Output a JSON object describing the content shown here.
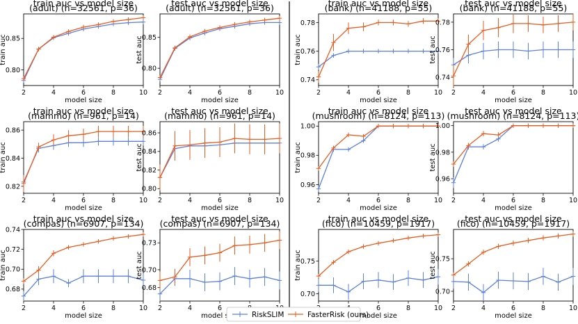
{
  "colors": {
    "riskslim": "#5b7fe0",
    "fasterrisk": "#ea5a1c",
    "divider": "#000000"
  },
  "legend": [
    {
      "name": "RiskSLIM",
      "color": "#5b7fe0"
    },
    {
      "name": "FasterRisk (ours)",
      "color": "#ea5a1c"
    }
  ],
  "chart_data": [
    {
      "type": "line",
      "title": "train auc vs model size",
      "subtitle": "(adult) (n=32561, p=36)",
      "xlabel": "model size",
      "ylabel": "train auc",
      "x": [
        2,
        3,
        4,
        5,
        6,
        7,
        8,
        9,
        10
      ],
      "xlim": [
        2,
        10
      ],
      "ylim": [
        0.775,
        0.889
      ],
      "xticks": [
        2,
        4,
        6,
        8,
        10
      ],
      "yticks": [
        0.8,
        0.85
      ],
      "ytick_labels": [
        "0.80",
        "0.85"
      ],
      "series": [
        {
          "name": "RiskSLIM",
          "values": [
            0.783,
            0.833,
            0.851,
            0.858,
            0.865,
            0.869,
            0.873,
            0.875,
            0.876
          ],
          "err": [
            0,
            0,
            0,
            0,
            0,
            0,
            0,
            0,
            0
          ]
        },
        {
          "name": "FasterRisk (ours)",
          "values": [
            0.786,
            0.833,
            0.852,
            0.861,
            0.868,
            0.872,
            0.877,
            0.88,
            0.883
          ],
          "err": [
            0,
            0,
            0,
            0,
            0,
            0,
            0,
            0,
            0
          ]
        }
      ]
    },
    {
      "type": "line",
      "title": "test auc vs model size",
      "subtitle": "(adult) (n=32561, p=36)",
      "xlabel": "model size",
      "ylabel": "test auc",
      "x": [
        2,
        3,
        4,
        5,
        6,
        7,
        8,
        9,
        10
      ],
      "xlim": [
        2,
        10
      ],
      "ylim": [
        0.772,
        0.888
      ],
      "xticks": [
        2,
        4,
        6,
        8,
        10
      ],
      "yticks": [
        0.8,
        0.85
      ],
      "ytick_labels": [
        "0.80",
        "0.85"
      ],
      "series": [
        {
          "name": "RiskSLIM",
          "values": [
            0.782,
            0.832,
            0.849,
            0.857,
            0.864,
            0.868,
            0.872,
            0.874,
            0.874
          ],
          "err": [
            0.003,
            0.003,
            0.003,
            0.003,
            0.003,
            0.003,
            0.003,
            0.003,
            0.003
          ]
        },
        {
          "name": "FasterRisk (ours)",
          "values": [
            0.785,
            0.833,
            0.851,
            0.86,
            0.866,
            0.871,
            0.875,
            0.878,
            0.881
          ],
          "err": [
            0.003,
            0.003,
            0.003,
            0.003,
            0.003,
            0.003,
            0.003,
            0.003,
            0.003
          ]
        }
      ]
    },
    {
      "type": "line",
      "title": "train auc vs model size",
      "subtitle": "(bank) (n=41188, p=55)",
      "xlabel": "model size",
      "ylabel": "train auc",
      "x": [
        2,
        3,
        4,
        5,
        6,
        7,
        8,
        9,
        10
      ],
      "xlim": [
        2,
        10
      ],
      "ylim": [
        0.736,
        0.786
      ],
      "xticks": [
        2,
        4,
        6,
        8,
        10
      ],
      "yticks": [
        0.74,
        0.76,
        0.78
      ],
      "ytick_labels": [
        "0.74",
        "0.76",
        "0.78"
      ],
      "series": [
        {
          "name": "RiskSLIM",
          "values": [
            0.749,
            0.757,
            0.76,
            0.76,
            0.76,
            0.76,
            0.76,
            0.76,
            0.76
          ],
          "err": [
            0.002,
            0.001,
            0.001,
            0.001,
            0.001,
            0.001,
            0.001,
            0.001,
            0.001
          ]
        },
        {
          "name": "FasterRisk (ours)",
          "values": [
            0.742,
            0.766,
            0.776,
            0.777,
            0.78,
            0.78,
            0.779,
            0.781,
            0.781
          ],
          "err": [
            0.004,
            0.006,
            0.004,
            0.003,
            0.002,
            0.002,
            0.002,
            0.002,
            0.002
          ]
        }
      ]
    },
    {
      "type": "line",
      "title": "test auc vs model size",
      "subtitle": "(bank) (n=41188, p=55)",
      "xlabel": "model size",
      "ylabel": "test auc",
      "x": [
        2,
        3,
        4,
        5,
        6,
        7,
        8,
        9,
        10
      ],
      "xlim": [
        2,
        10
      ],
      "ylim": [
        0.734,
        0.786
      ],
      "xticks": [
        2,
        4,
        6,
        8,
        10
      ],
      "yticks": [
        0.74,
        0.76,
        0.78
      ],
      "ytick_labels": [
        "0.74",
        "0.76",
        "0.78"
      ],
      "series": [
        {
          "name": "RiskSLIM",
          "values": [
            0.749,
            0.756,
            0.759,
            0.76,
            0.76,
            0.759,
            0.76,
            0.76,
            0.76
          ],
          "err": [
            0.005,
            0.006,
            0.006,
            0.006,
            0.006,
            0.006,
            0.006,
            0.006,
            0.006
          ]
        },
        {
          "name": "FasterRisk (ours)",
          "values": [
            0.741,
            0.764,
            0.774,
            0.776,
            0.779,
            0.779,
            0.778,
            0.779,
            0.78
          ],
          "err": [
            0.008,
            0.007,
            0.007,
            0.007,
            0.007,
            0.006,
            0.006,
            0.006,
            0.006
          ]
        }
      ]
    },
    {
      "type": "line",
      "title": "train auc vs model size",
      "subtitle": "(mammo) (n=961, p=14)",
      "xlabel": "model size",
      "ylabel": "train auc",
      "x": [
        2,
        3,
        4,
        5,
        6,
        7,
        8,
        9,
        10
      ],
      "xlim": [
        2,
        10
      ],
      "ylim": [
        0.815,
        0.866
      ],
      "xticks": [
        2,
        4,
        6,
        8,
        10
      ],
      "yticks": [
        0.82,
        0.84,
        0.86
      ],
      "ytick_labels": [
        "0.82",
        "0.84",
        "0.86"
      ],
      "series": [
        {
          "name": "RiskSLIM",
          "values": [
            0.823,
            0.847,
            0.849,
            0.851,
            0.851,
            0.852,
            0.852,
            0.852,
            0.852
          ],
          "err": [
            0.004,
            0.003,
            0.003,
            0.003,
            0.003,
            0.003,
            0.003,
            0.003,
            0.003
          ]
        },
        {
          "name": "FasterRisk (ours)",
          "values": [
            0.822,
            0.848,
            0.853,
            0.856,
            0.857,
            0.859,
            0.859,
            0.859,
            0.859
          ],
          "err": [
            0.006,
            0.003,
            0.004,
            0.004,
            0.004,
            0.004,
            0.004,
            0.004,
            0.004
          ]
        }
      ]
    },
    {
      "type": "line",
      "title": "test auc vs model size",
      "subtitle": "(mammo) (n=961, p=14)",
      "xlabel": "model size",
      "ylabel": "test auc",
      "x": [
        2,
        3,
        4,
        5,
        6,
        7,
        8,
        9,
        10
      ],
      "xlim": [
        2,
        10
      ],
      "ylim": [
        0.795,
        0.872
      ],
      "xticks": [
        2,
        4,
        6,
        8,
        10
      ],
      "yticks": [
        0.8,
        0.82,
        0.84,
        0.86
      ],
      "ytick_labels": [
        "0.80",
        "0.82",
        "0.84",
        "0.86"
      ],
      "series": [
        {
          "name": "RiskSLIM",
          "values": [
            0.812,
            0.843,
            0.846,
            0.846,
            0.847,
            0.849,
            0.849,
            0.849,
            0.849
          ],
          "err": [
            0.012,
            0.012,
            0.012,
            0.011,
            0.011,
            0.011,
            0.011,
            0.011,
            0.011
          ]
        },
        {
          "name": "FasterRisk (ours)",
          "values": [
            0.812,
            0.846,
            0.847,
            0.849,
            0.85,
            0.854,
            0.853,
            0.853,
            0.854
          ],
          "err": [
            0.014,
            0.016,
            0.016,
            0.016,
            0.016,
            0.016,
            0.016,
            0.016,
            0.016
          ]
        }
      ]
    },
    {
      "type": "line",
      "title": "train auc vs model size",
      "subtitle": "(mushroom) (n=8124, p=113)",
      "xlabel": "model size",
      "ylabel": "train auc",
      "x": [
        2,
        3,
        4,
        5,
        6,
        7,
        8,
        9,
        10
      ],
      "xlim": [
        2,
        10
      ],
      "ylim": [
        0.954,
        1.003
      ],
      "xticks": [
        2,
        4,
        6,
        8,
        10
      ],
      "yticks": [
        0.96,
        0.98,
        1.0
      ],
      "ytick_labels": [
        "0.96",
        "0.98",
        "1.00"
      ],
      "series": [
        {
          "name": "RiskSLIM",
          "values": [
            0.957,
            0.984,
            0.984,
            0.99,
            1.0,
            1.0,
            1.0,
            1.0,
            1.0
          ],
          "err": [
            0.002,
            0.001,
            0.001,
            0.001,
            0.0,
            0.0,
            0.0,
            0.0,
            0.0
          ]
        },
        {
          "name": "FasterRisk (ours)",
          "values": [
            0.971,
            0.985,
            0.994,
            0.993,
            1.0,
            1.0,
            1.0,
            1.0,
            1.0
          ],
          "err": [
            0.001,
            0.001,
            0.001,
            0.001,
            0.0,
            0.0,
            0.0,
            0.0,
            0.0
          ]
        }
      ]
    },
    {
      "type": "line",
      "title": "test auc vs model size",
      "subtitle": "(mushroom) (n=8124, p=113)",
      "xlabel": "model size",
      "ylabel": "test auc",
      "x": [
        2,
        3,
        4,
        5,
        6,
        7,
        8,
        9,
        10
      ],
      "xlim": [
        2,
        10
      ],
      "ylim": [
        0.949,
        1.003
      ],
      "xticks": [
        2,
        4,
        6,
        8,
        10
      ],
      "yticks": [
        0.96,
        0.98,
        1.0
      ],
      "ytick_labels": [
        "0.96",
        "0.98",
        "1.00"
      ],
      "series": [
        {
          "name": "RiskSLIM",
          "values": [
            0.957,
            0.984,
            0.984,
            0.99,
            1.0,
            1.0,
            1.0,
            1.0,
            1.0
          ],
          "err": [
            0.004,
            0.002,
            0.002,
            0.002,
            0.0,
            0.0,
            0.0,
            0.0,
            0.0
          ]
        },
        {
          "name": "FasterRisk (ours)",
          "values": [
            0.971,
            0.985,
            0.994,
            0.993,
            1.0,
            1.0,
            1.0,
            1.0,
            1.0
          ],
          "err": [
            0.002,
            0.002,
            0.002,
            0.002,
            0.0,
            0.0,
            0.0,
            0.0,
            0.0
          ]
        }
      ]
    },
    {
      "type": "line",
      "title": "train auc vs model size",
      "subtitle": "(compas) (n=6907, p=134)",
      "xlabel": "model size",
      "ylabel": "train auc",
      "x": [
        2,
        3,
        4,
        5,
        6,
        7,
        8,
        9,
        10
      ],
      "xlim": [
        2,
        10
      ],
      "ylim": [
        0.668,
        0.74
      ],
      "xticks": [
        2,
        4,
        6,
        8,
        10
      ],
      "yticks": [
        0.68,
        0.7,
        0.72,
        0.74
      ],
      "ytick_labels": [
        "0.68",
        "0.70",
        "0.72",
        "0.74"
      ],
      "series": [
        {
          "name": "RiskSLIM",
          "values": [
            0.673,
            0.69,
            0.693,
            0.686,
            0.693,
            0.693,
            0.693,
            0.693,
            0.689
          ],
          "err": [
            0.005,
            0.006,
            0.007,
            0.004,
            0.007,
            0.007,
            0.007,
            0.007,
            0.007
          ]
        },
        {
          "name": "FasterRisk (ours)",
          "values": [
            0.688,
            0.699,
            0.716,
            0.722,
            0.725,
            0.728,
            0.731,
            0.733,
            0.735
          ],
          "err": [
            0.003,
            0.004,
            0.003,
            0.002,
            0.002,
            0.002,
            0.002,
            0.002,
            0.002
          ]
        }
      ]
    },
    {
      "type": "line",
      "title": "test auc vs model size",
      "subtitle": "(compas) (n=6907, p=134)",
      "xlabel": "model size",
      "ylabel": "test auc",
      "x": [
        2,
        3,
        4,
        5,
        6,
        7,
        8,
        9,
        10
      ],
      "xlim": [
        2,
        10
      ],
      "ylim": [
        0.665,
        0.745
      ],
      "xticks": [
        2,
        4,
        6,
        8,
        10
      ],
      "yticks": [
        0.68,
        0.7,
        0.73
      ],
      "ytick_labels": [
        "0.68",
        "0.70",
        "0.73"
      ],
      "series": [
        {
          "name": "RiskSLIM",
          "values": [
            0.673,
            0.69,
            0.69,
            0.686,
            0.687,
            0.693,
            0.69,
            0.692,
            0.688
          ],
          "err": [
            0.008,
            0.008,
            0.01,
            0.01,
            0.01,
            0.01,
            0.01,
            0.01,
            0.01
          ]
        },
        {
          "name": "FasterRisk (ours)",
          "values": [
            0.688,
            0.692,
            0.714,
            0.716,
            0.719,
            0.727,
            0.728,
            0.73,
            0.733
          ],
          "err": [
            0.01,
            0.009,
            0.01,
            0.01,
            0.01,
            0.01,
            0.01,
            0.01,
            0.01
          ]
        }
      ]
    },
    {
      "type": "line",
      "title": "train auc vs model size",
      "subtitle": "(fico) (n=10459, p=1917)",
      "xlabel": "model size",
      "ylabel": "train auc",
      "x": [
        2,
        3,
        4,
        5,
        6,
        7,
        8,
        9,
        10
      ],
      "xlim": [
        2,
        10
      ],
      "ylim": [
        0.689,
        0.798
      ],
      "xticks": [
        2,
        4,
        6,
        8,
        10
      ],
      "yticks": [
        0.7,
        0.75
      ],
      "ytick_labels": [
        "0.70",
        "0.75"
      ],
      "series": [
        {
          "name": "RiskSLIM",
          "values": [
            0.713,
            0.713,
            0.703,
            0.719,
            0.721,
            0.718,
            0.724,
            0.721,
            0.726
          ],
          "err": [
            0.01,
            0.012,
            0.012,
            0.012,
            0.012,
            0.012,
            0.012,
            0.012,
            0.012
          ]
        },
        {
          "name": "FasterRisk (ours)",
          "values": [
            0.727,
            0.748,
            0.764,
            0.772,
            0.777,
            0.781,
            0.785,
            0.788,
            0.79
          ],
          "err": [
            0.002,
            0.002,
            0.002,
            0.002,
            0.002,
            0.002,
            0.002,
            0.002,
            0.002
          ]
        }
      ]
    },
    {
      "type": "line",
      "title": "test auc vs model size",
      "subtitle": "(fico) (n=10459, p=1917)",
      "xlabel": "model size",
      "ylabel": "test auc",
      "x": [
        2,
        3,
        4,
        5,
        6,
        7,
        8,
        9,
        10
      ],
      "xlim": [
        2,
        10
      ],
      "ylim": [
        0.685,
        0.795
      ],
      "xticks": [
        2,
        4,
        6,
        8,
        10
      ],
      "yticks": [
        0.7,
        0.75
      ],
      "ytick_labels": [
        "0.70",
        "0.75"
      ],
      "series": [
        {
          "name": "RiskSLIM",
          "values": [
            0.715,
            0.714,
            0.698,
            0.717,
            0.716,
            0.715,
            0.723,
            0.714,
            0.723
          ],
          "err": [
            0.011,
            0.013,
            0.013,
            0.013,
            0.013,
            0.013,
            0.013,
            0.013,
            0.013
          ]
        },
        {
          "name": "FasterRisk (ours)",
          "values": [
            0.725,
            0.742,
            0.76,
            0.769,
            0.774,
            0.778,
            0.782,
            0.785,
            0.788
          ],
          "err": [
            0.004,
            0.004,
            0.004,
            0.004,
            0.004,
            0.004,
            0.004,
            0.004,
            0.004
          ]
        }
      ]
    }
  ]
}
